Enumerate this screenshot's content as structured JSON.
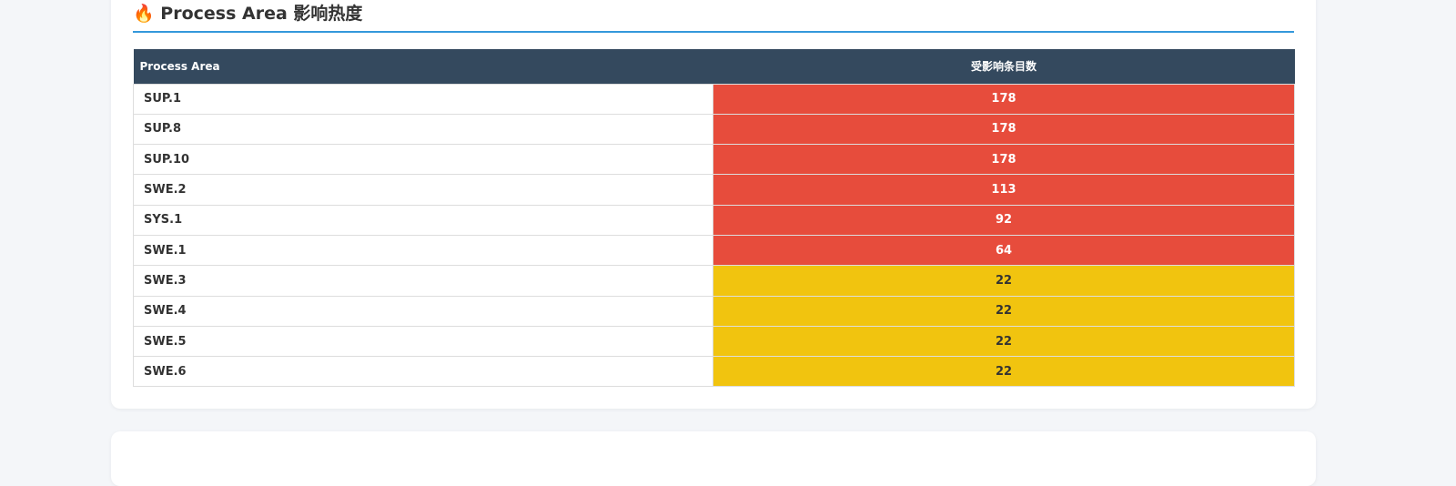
{
  "section": {
    "title": "🔥 Process Area 影响热度",
    "table": {
      "columns": [
        "Process Area",
        "受影响条目数"
      ],
      "rows": [
        {
          "area": "SUP.1",
          "count": 178,
          "color": "#e74c3c",
          "text_color": "#ffffff"
        },
        {
          "area": "SUP.8",
          "count": 178,
          "color": "#e74c3c",
          "text_color": "#ffffff"
        },
        {
          "area": "SUP.10",
          "count": 178,
          "color": "#e74c3c",
          "text_color": "#ffffff"
        },
        {
          "area": "SWE.2",
          "count": 113,
          "color": "#e74c3c",
          "text_color": "#ffffff"
        },
        {
          "area": "SYS.1",
          "count": 92,
          "color": "#e74c3c",
          "text_color": "#ffffff"
        },
        {
          "area": "SWE.1",
          "count": 64,
          "color": "#e74c3c",
          "text_color": "#ffffff"
        },
        {
          "area": "SWE.3",
          "count": 22,
          "color": "#f1c40f",
          "text_color": "#333333"
        },
        {
          "area": "SWE.4",
          "count": 22,
          "color": "#f1c40f",
          "text_color": "#333333"
        },
        {
          "area": "SWE.5",
          "count": 22,
          "color": "#f1c40f",
          "text_color": "#333333"
        },
        {
          "area": "SWE.6",
          "count": 22,
          "color": "#f1c40f",
          "text_color": "#333333"
        }
      ]
    }
  }
}
